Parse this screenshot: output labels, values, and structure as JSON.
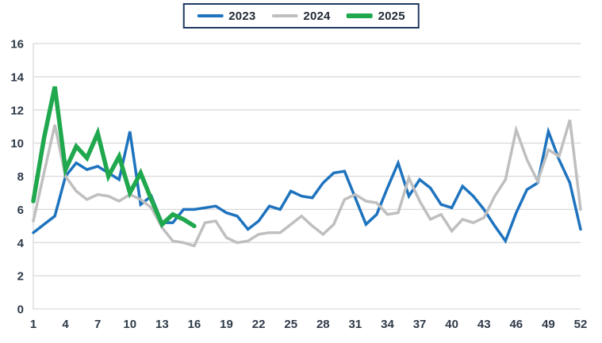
{
  "colors": {
    "background": "#FFFFFF",
    "axis_text": "#2E3A48",
    "gridline": "#D9D9D9",
    "axis_line": "#C9CDD1",
    "legend_border": "#1F3A5F",
    "series_2023": "#1E73BE",
    "series_2024": "#BFBFBF",
    "series_2025": "#1FA84D"
  },
  "legend": {
    "position": "top-center",
    "items": [
      {
        "label": "2023",
        "color": "#1E73BE",
        "thickness": 4
      },
      {
        "label": "2024",
        "color": "#BFBFBF",
        "thickness": 4
      },
      {
        "label": "2025",
        "color": "#1FA84D",
        "thickness": 6
      }
    ]
  },
  "chart_data": {
    "type": "line",
    "title": "",
    "xlabel": "",
    "ylabel": "",
    "xlim": [
      1,
      52
    ],
    "ylim": [
      0,
      16
    ],
    "x_ticks": [
      1,
      4,
      7,
      10,
      13,
      16,
      19,
      22,
      25,
      28,
      31,
      34,
      37,
      40,
      43,
      46,
      49,
      52
    ],
    "y_ticks": [
      0,
      2,
      4,
      6,
      8,
      10,
      12,
      14,
      16
    ],
    "grid": "horizontal",
    "legend_position": "top-center",
    "x_unit": "week",
    "series": [
      {
        "name": "2023",
        "color": "#1E73BE",
        "stroke_width": 3.5,
        "start_week": 1,
        "values": [
          4.6,
          5.1,
          5.6,
          8.0,
          8.8,
          8.4,
          8.6,
          8.2,
          7.8,
          10.7,
          6.3,
          6.8,
          5.2,
          5.2,
          6.0,
          6.0,
          6.1,
          6.2,
          5.8,
          5.6,
          4.8,
          5.3,
          6.2,
          6.0,
          7.1,
          6.8,
          6.7,
          7.6,
          8.2,
          8.3,
          6.7,
          5.1,
          5.7,
          7.3,
          8.8,
          6.8,
          7.8,
          7.3,
          6.3,
          6.1,
          7.4,
          6.8,
          6.0,
          5.0,
          4.1,
          5.8,
          7.2,
          7.6,
          10.7,
          9.0,
          7.6,
          4.8
        ]
      },
      {
        "name": "2024",
        "color": "#BFBFBF",
        "stroke_width": 3.5,
        "start_week": 1,
        "values": [
          5.3,
          8.2,
          11.1,
          8.0,
          7.1,
          6.6,
          6.9,
          6.8,
          6.5,
          6.9,
          6.6,
          6.1,
          4.9,
          4.1,
          4.0,
          3.8,
          5.2,
          5.3,
          4.3,
          4.0,
          4.1,
          4.5,
          4.6,
          4.6,
          5.1,
          5.6,
          5.0,
          4.5,
          5.1,
          6.6,
          6.9,
          6.5,
          6.4,
          5.7,
          5.8,
          7.9,
          6.5,
          5.4,
          5.7,
          4.7,
          5.4,
          5.2,
          5.5,
          6.8,
          7.8,
          10.8,
          9.0,
          7.7,
          9.6,
          9.2,
          11.4,
          6.0
        ]
      },
      {
        "name": "2025",
        "color": "#1FA84D",
        "stroke_width": 5.5,
        "start_week": 1,
        "values": [
          6.5,
          10.3,
          13.4,
          8.4,
          9.8,
          9.1,
          10.6,
          8.0,
          9.2,
          7.0,
          8.2,
          6.6,
          5.1,
          5.7,
          5.4,
          5.0
        ]
      }
    ]
  }
}
